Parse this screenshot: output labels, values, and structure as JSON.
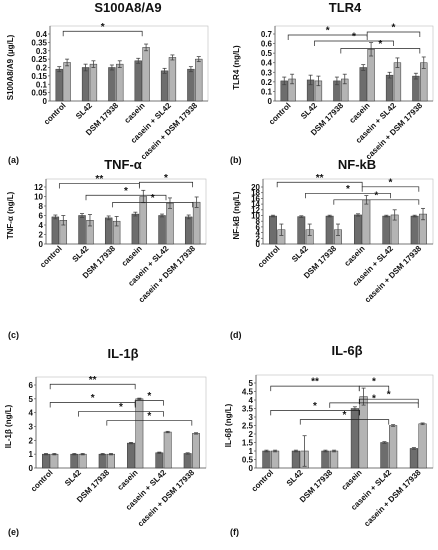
{
  "colors": {
    "dark_bar": "#6d6d6d",
    "light_bar": "#b4b4b4",
    "plot_bg": "#ffffff",
    "error": "#444444"
  },
  "chart_data": [
    {
      "panel": "(a)",
      "type": "bar",
      "title": "S100A8/A9",
      "ylabel": "S100A8/A9 (µg/L)",
      "ylim": [
        0,
        0.4
      ],
      "yticks": [
        "0",
        "0.05",
        "0.1",
        "0.15",
        "0.2",
        "0.25",
        "0.3",
        "0.35",
        "0.4"
      ],
      "categories": [
        "control",
        "SL42",
        "DSM 17938",
        "casein",
        "casein + SL42",
        "casein + DSM 17938"
      ],
      "series": [
        {
          "values": [
            0.19,
            0.2,
            0.2,
            0.24,
            0.18,
            0.19
          ],
          "errors": [
            0.015,
            0.02,
            0.015,
            0.015,
            0.015,
            0.015
          ]
        },
        {
          "values": [
            0.23,
            0.22,
            0.22,
            0.32,
            0.26,
            0.25
          ],
          "errors": [
            0.02,
            0.02,
            0.02,
            0.02,
            0.015,
            0.015
          ]
        }
      ],
      "annotations": [
        "*"
      ]
    },
    {
      "panel": "(b)",
      "type": "bar",
      "title": "TLR4",
      "ylabel": "TLR4 (ng/L)",
      "ylim": [
        0,
        0.7
      ],
      "yticks": [
        "0",
        "0.1",
        "0.2",
        "0.3",
        "0.4",
        "0.5",
        "0.6",
        "0.7"
      ],
      "categories": [
        "control",
        "SL42",
        "DSM 17938",
        "casein",
        "casein + SL42",
        "casein + DSM 17938"
      ],
      "series": [
        {
          "values": [
            0.21,
            0.22,
            0.21,
            0.35,
            0.27,
            0.26
          ],
          "errors": [
            0.04,
            0.05,
            0.04,
            0.03,
            0.03,
            0.03
          ]
        },
        {
          "values": [
            0.23,
            0.21,
            0.23,
            0.54,
            0.4,
            0.4
          ],
          "errors": [
            0.05,
            0.05,
            0.05,
            0.07,
            0.05,
            0.06
          ]
        }
      ],
      "annotations": [
        "*",
        "*",
        "*",
        "*"
      ]
    },
    {
      "panel": "(c)",
      "type": "bar",
      "title": "TNF-α",
      "ylabel": "TNF-α (ng/L)",
      "ylim": [
        0,
        12
      ],
      "yticks": [
        "0",
        "2",
        "4",
        "6",
        "8",
        "10",
        "12"
      ],
      "categories": [
        "control",
        "SL42",
        "DSM 17938",
        "casein",
        "casein + SL42",
        "casein + DSM 17938"
      ],
      "series": [
        {
          "values": [
            5.7,
            6.0,
            5.5,
            6.3,
            6.0,
            5.7
          ],
          "errors": [
            0.4,
            0.4,
            0.4,
            0.4,
            0.3,
            0.4
          ]
        },
        {
          "values": [
            5.0,
            5.0,
            4.8,
            10.0,
            8.6,
            8.8
          ],
          "errors": [
            1.0,
            1.2,
            1.0,
            1.3,
            1.1,
            1.1
          ]
        }
      ],
      "annotations": [
        "**",
        "*",
        "*",
        "*"
      ]
    },
    {
      "panel": "(d)",
      "type": "bar",
      "title": "NF-kB",
      "ylabel": "NF-kB (ng/L)",
      "ylim": [
        0,
        20
      ],
      "yticks": [
        "0",
        "2",
        "4",
        "6",
        "8",
        "10",
        "12",
        "14",
        "16",
        "18",
        "20"
      ],
      "categories": [
        "control",
        "SL42",
        "DSM 17938",
        "casein",
        "casein + SL42",
        "casein + DSM 17938"
      ],
      "series": [
        {
          "values": [
            9.8,
            9.6,
            9.8,
            10.2,
            9.8,
            9.8
          ],
          "errors": [
            0.3,
            0.3,
            0.3,
            0.4,
            0.3,
            0.3
          ]
        },
        {
          "values": [
            5.0,
            5.0,
            5.0,
            15.5,
            10.2,
            10.5
          ],
          "errors": [
            2.0,
            2.0,
            2.0,
            1.5,
            1.8,
            2.0
          ]
        }
      ],
      "annotations": [
        "**",
        "*",
        "*",
        "*"
      ]
    },
    {
      "panel": "(e)",
      "type": "bar",
      "title": "IL-1β",
      "ylabel": "IL-1β (ng/L)",
      "ylim": [
        0,
        6
      ],
      "yticks": [
        "0",
        "1",
        "2",
        "3",
        "4",
        "5",
        "6"
      ],
      "categories": [
        "control",
        "SL42",
        "DSM 17938",
        "casein",
        "casein + SL42",
        "casein + DSM 17938"
      ],
      "series": [
        {
          "values": [
            1.0,
            1.0,
            1.0,
            1.8,
            1.1,
            1.05
          ],
          "errors": [
            0.05,
            0.05,
            0.05,
            0.05,
            0.05,
            0.05
          ]
        },
        {
          "values": [
            1.0,
            1.0,
            1.0,
            5.0,
            2.6,
            2.5
          ],
          "errors": [
            0.05,
            0.05,
            0.05,
            0.05,
            0.05,
            0.05
          ]
        }
      ],
      "annotations": [
        "**",
        "*",
        "*",
        "*",
        "*"
      ]
    },
    {
      "panel": "(f)",
      "type": "bar",
      "title": "IL-6β",
      "ylabel": "IL-6β (ng/L)",
      "ylim": [
        0,
        5
      ],
      "yticks": [
        "0",
        "0.5",
        "1",
        "1.5",
        "2",
        "2.5",
        "3",
        "3.5",
        "4",
        "4.5",
        "5"
      ],
      "categories": [
        "control",
        "SL42",
        "DSM 17938",
        "casein",
        "casein + SL42",
        "casein + DSM 17938"
      ],
      "series": [
        {
          "values": [
            1.0,
            1.0,
            1.0,
            3.5,
            1.5,
            1.15
          ],
          "errors": [
            0.05,
            0.05,
            0.05,
            0.1,
            0.05,
            0.05
          ]
        },
        {
          "values": [
            1.0,
            1.0,
            1.0,
            4.2,
            2.5,
            2.6
          ],
          "errors": [
            0.05,
            0.9,
            0.05,
            0.5,
            0.05,
            0.05
          ]
        }
      ],
      "annotations": [
        "**",
        "*",
        "*",
        "*",
        "*",
        "*"
      ]
    }
  ]
}
